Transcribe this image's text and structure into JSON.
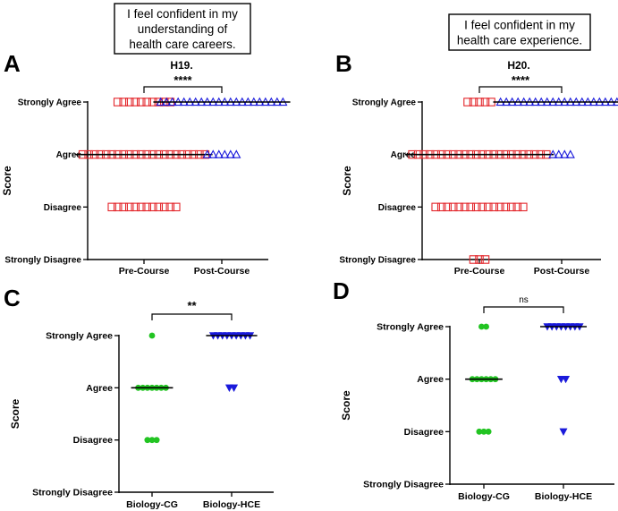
{
  "panels": [
    {
      "id": "A",
      "letter": "A",
      "title": "H19.",
      "statement": [
        "I feel confident in my",
        "understanding of",
        "health care careers."
      ],
      "ylabel": "Score",
      "y_categories": [
        "Strongly Disagree",
        "Disagree",
        "Agree",
        "Strongly Agree"
      ],
      "x_categories": [
        "Pre-Course",
        "Post-Course"
      ],
      "significance": "****",
      "groups": [
        {
          "name": "Pre-Course",
          "marker": "square",
          "color": "#e3262b",
          "counts": {
            "Strongly Agree": 10,
            "Agree": 22,
            "Disagree": 12,
            "Strongly Disagree": 0
          },
          "median": "Agree"
        },
        {
          "name": "Post-Course",
          "marker": "triangle-up",
          "color": "#1a1adb",
          "counts": {
            "Strongly Agree": 22,
            "Agree": 6,
            "Disagree": 0,
            "Strongly Disagree": 0
          },
          "median": "Strongly Agree"
        }
      ]
    },
    {
      "id": "B",
      "letter": "B",
      "title": "H20.",
      "statement": [
        "I feel confident in my",
        "health care experience."
      ],
      "ylabel": "Score",
      "y_categories": [
        "Strongly Disagree",
        "Disagree",
        "Agree",
        "Strongly Agree"
      ],
      "x_categories": [
        "Pre-Course",
        "Post-Course"
      ],
      "significance": "****",
      "groups": [
        {
          "name": "Pre-Course",
          "marker": "square",
          "color": "#e3262b",
          "counts": {
            "Strongly Agree": 5,
            "Agree": 24,
            "Disagree": 16,
            "Strongly Disagree": 3
          },
          "median": "Agree"
        },
        {
          "name": "Post-Course",
          "marker": "triangle-up",
          "color": "#1a1adb",
          "counts": {
            "Strongly Agree": 22,
            "Agree": 4,
            "Disagree": 0,
            "Strongly Disagree": 0
          },
          "median": "Strongly Agree"
        }
      ]
    },
    {
      "id": "C",
      "letter": "C",
      "title": "",
      "statement": [],
      "ylabel": "Score",
      "y_categories": [
        "Strongly Disagree",
        "Disagree",
        "Agree",
        "Strongly Agree"
      ],
      "x_categories": [
        "Biology-CG",
        "Biology-HCE"
      ],
      "significance": "**",
      "groups": [
        {
          "name": "Biology-CG",
          "marker": "circle",
          "color": "#22c422",
          "counts": {
            "Strongly Agree": 1,
            "Agree": 7,
            "Disagree": 3,
            "Strongly Disagree": 0
          },
          "median": "Agree"
        },
        {
          "name": "Biology-HCE",
          "marker": "triangle-down",
          "color": "#1a1adb",
          "counts": {
            "Strongly Agree": 9,
            "Agree": 2,
            "Disagree": 0,
            "Strongly Disagree": 0
          },
          "median": "Strongly Agree"
        }
      ]
    },
    {
      "id": "D",
      "letter": "D",
      "title": "",
      "statement": [],
      "ylabel": "Score",
      "y_categories": [
        "Strongly Disagree",
        "Disagree",
        "Agree",
        "Strongly Agree"
      ],
      "x_categories": [
        "Biology-CG",
        "Biology-HCE"
      ],
      "significance": "ns",
      "groups": [
        {
          "name": "Biology-CG",
          "marker": "circle",
          "color": "#22c422",
          "counts": {
            "Strongly Agree": 2,
            "Agree": 6,
            "Disagree": 3,
            "Strongly Disagree": 0
          },
          "median": "Agree"
        },
        {
          "name": "Biology-HCE",
          "marker": "triangle-down",
          "color": "#1a1adb",
          "counts": {
            "Strongly Agree": 8,
            "Agree": 2,
            "Disagree": 1,
            "Strongly Disagree": 0
          },
          "median": "Strongly Agree"
        }
      ]
    }
  ],
  "chart_data": [
    {
      "type": "scatter",
      "title": "H19.",
      "ylabel": "Score",
      "categories": [
        "Pre-Course",
        "Post-Course"
      ],
      "series": [
        {
          "name": "Pre-Course",
          "values": {
            "Strongly Agree": 10,
            "Agree": 22,
            "Disagree": 12,
            "Strongly Disagree": 0
          }
        },
        {
          "name": "Post-Course",
          "values": {
            "Strongly Agree": 22,
            "Agree": 6,
            "Disagree": 0,
            "Strongly Disagree": 0
          }
        }
      ],
      "significance": "****"
    },
    {
      "type": "scatter",
      "title": "H20.",
      "ylabel": "Score",
      "categories": [
        "Pre-Course",
        "Post-Course"
      ],
      "series": [
        {
          "name": "Pre-Course",
          "values": {
            "Strongly Agree": 5,
            "Agree": 24,
            "Disagree": 16,
            "Strongly Disagree": 3
          }
        },
        {
          "name": "Post-Course",
          "values": {
            "Strongly Agree": 22,
            "Agree": 4,
            "Disagree": 0,
            "Strongly Disagree": 0
          }
        }
      ],
      "significance": "****"
    },
    {
      "type": "scatter",
      "title": "",
      "ylabel": "Score",
      "categories": [
        "Biology-CG",
        "Biology-HCE"
      ],
      "series": [
        {
          "name": "Biology-CG",
          "values": {
            "Strongly Agree": 1,
            "Agree": 7,
            "Disagree": 3,
            "Strongly Disagree": 0
          }
        },
        {
          "name": "Biology-HCE",
          "values": {
            "Strongly Agree": 9,
            "Agree": 2,
            "Disagree": 0,
            "Strongly Disagree": 0
          }
        }
      ],
      "significance": "**"
    },
    {
      "type": "scatter",
      "title": "",
      "ylabel": "Score",
      "categories": [
        "Biology-CG",
        "Biology-HCE"
      ],
      "series": [
        {
          "name": "Biology-CG",
          "values": {
            "Strongly Agree": 2,
            "Agree": 6,
            "Disagree": 3,
            "Strongly Disagree": 0
          }
        },
        {
          "name": "Biology-HCE",
          "values": {
            "Strongly Agree": 8,
            "Agree": 2,
            "Disagree": 1,
            "Strongly Disagree": 0
          }
        }
      ],
      "significance": "ns"
    }
  ]
}
